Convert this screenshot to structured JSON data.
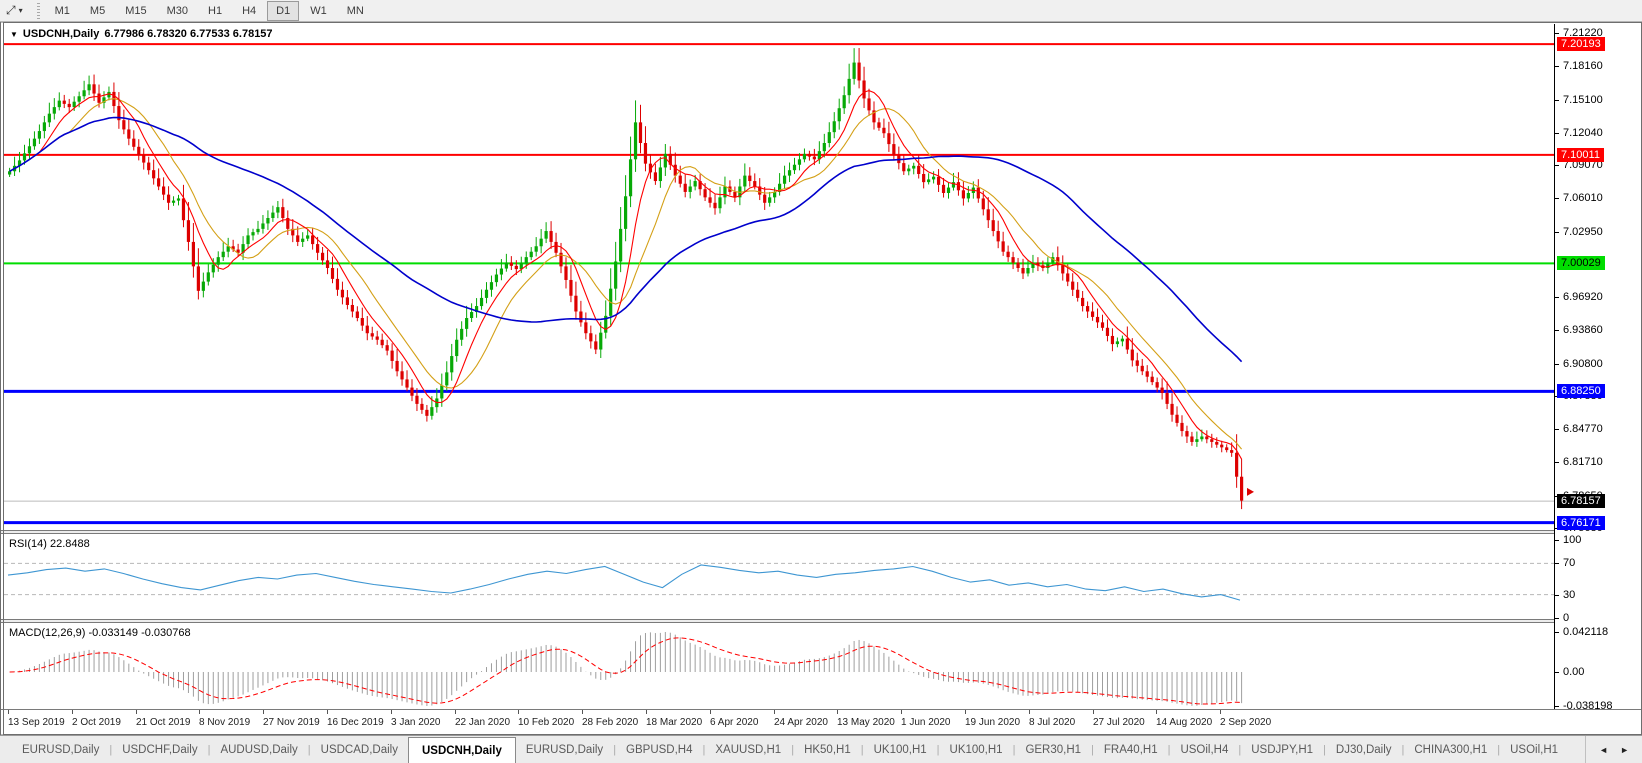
{
  "toolbar": {
    "timeframes": [
      "M1",
      "M5",
      "M15",
      "M30",
      "H1",
      "H4",
      "D1",
      "W1",
      "MN"
    ],
    "active_timeframe": "D1",
    "cursor_tool_glyph": "⤢",
    "caret_glyph": "▾"
  },
  "chart": {
    "collapse_icon": "▼",
    "title_symbol": "USDCNH,Daily",
    "ohlc": "6.77986 6.78320 6.77533 6.78157",
    "open": "6.77986",
    "high": "6.78320",
    "low": "6.77533",
    "close": "6.78157"
  },
  "price_axis": {
    "ticks": [
      {
        "label": "7.21220",
        "value": 7.2122
      },
      {
        "label": "7.18160",
        "value": 7.1816
      },
      {
        "label": "7.15100",
        "value": 7.151
      },
      {
        "label": "7.12040",
        "value": 7.1204
      },
      {
        "label": "7.09070",
        "value": 7.0907
      },
      {
        "label": "7.06010",
        "value": 7.0601
      },
      {
        "label": "7.02950",
        "value": 7.0295
      },
      {
        "label": "6.96920",
        "value": 6.9692
      },
      {
        "label": "6.93860",
        "value": 6.9386
      },
      {
        "label": "6.90800",
        "value": 6.908
      },
      {
        "label": "6.87830",
        "value": 6.8783
      },
      {
        "label": "6.84770",
        "value": 6.8477
      },
      {
        "label": "6.81710",
        "value": 6.8171
      },
      {
        "label": "6.78650",
        "value": 6.7865
      },
      {
        "label": "6.75680",
        "value": 6.7568
      }
    ],
    "badges": [
      {
        "label": "7.20193",
        "value": 7.20193,
        "bg": "#FF0000",
        "fg": "#FFFFFF",
        "name": "resistance-badge-1"
      },
      {
        "label": "7.10011",
        "value": 7.10011,
        "bg": "#FF0000",
        "fg": "#FFFFFF",
        "name": "resistance-badge-2"
      },
      {
        "label": "7.00029",
        "value": 7.00029,
        "bg": "#00DD00",
        "fg": "#000000",
        "name": "pivot-badge"
      },
      {
        "label": "6.88250",
        "value": 6.8825,
        "bg": "#0000FF",
        "fg": "#FFFFFF",
        "name": "support-badge-1"
      },
      {
        "label": "6.78157",
        "value": 6.78157,
        "bg": "#000000",
        "fg": "#FFFFFF",
        "name": "current-price-badge"
      },
      {
        "label": "6.76171",
        "value": 6.76171,
        "bg": "#0000FF",
        "fg": "#FFFFFF",
        "name": "support-badge-2"
      }
    ]
  },
  "chart_data": {
    "type": "candlestick",
    "symbol": "USDCNH",
    "timeframe": "Daily",
    "price_range": [
      6.7568,
      7.2122
    ],
    "up_color": "#07A907",
    "down_color": "#DD0000",
    "close_path": [
      7.085,
      7.095,
      7.108,
      7.122,
      7.138,
      7.15,
      7.144,
      7.154,
      7.165,
      7.148,
      7.158,
      7.132,
      7.115,
      7.1,
      7.086,
      7.071,
      7.056,
      7.06,
      7.02,
      6.975,
      6.992,
      7.006,
      7.016,
      7.01,
      7.026,
      7.032,
      7.042,
      7.052,
      7.032,
      7.02,
      7.026,
      7.01,
      6.996,
      6.976,
      6.962,
      6.95,
      6.936,
      6.93,
      6.92,
      6.901,
      6.886,
      6.871,
      6.86,
      6.876,
      6.9,
      6.93,
      6.95,
      6.961,
      6.976,
      6.99,
      7.001,
      6.995,
      7.006,
      7.016,
      7.03,
      7.01,
      6.985,
      6.956,
      6.936,
      6.921,
      6.952,
      7.002,
      7.062,
      7.13,
      7.092,
      7.076,
      7.101,
      7.081,
      7.066,
      7.076,
      7.061,
      7.051,
      7.071,
      7.061,
      7.081,
      7.071,
      7.056,
      7.066,
      7.081,
      7.091,
      7.101,
      7.096,
      7.111,
      7.131,
      7.155,
      7.185,
      7.152,
      7.13,
      7.12,
      7.1,
      7.085,
      7.09,
      7.075,
      7.08,
      7.065,
      7.075,
      7.06,
      7.07,
      7.05,
      7.03,
      7.011,
      7.001,
      6.991,
      7.001,
      6.996,
      7.006,
      6.991,
      6.976,
      6.961,
      6.951,
      6.941,
      6.926,
      6.931,
      6.911,
      6.901,
      6.891,
      6.881,
      6.861,
      6.846,
      6.836,
      6.841,
      6.836,
      6.831,
      6.826,
      6.782
    ],
    "levels": [
      {
        "price": 7.20193,
        "color": "#FF0000",
        "width": 2
      },
      {
        "price": 7.10011,
        "color": "#FF0000",
        "width": 2
      },
      {
        "price": 7.00029,
        "color": "#00DD00",
        "width": 2
      },
      {
        "price": 6.8825,
        "color": "#0000FF",
        "width": 3
      },
      {
        "price": 6.76171,
        "color": "#0000FF",
        "width": 3
      }
    ],
    "current_price": {
      "price": 6.78157,
      "line_color": "#BBBBBB"
    },
    "moving_averages": [
      {
        "name": "ma-mid",
        "color": "#D4A017",
        "window": 13
      },
      {
        "name": "ma-fast",
        "color": "#FF0000",
        "window": 7
      },
      {
        "name": "ma-slow",
        "color": "#0000CC",
        "window": 45
      }
    ],
    "x_labels": [
      "13 Sep 2019",
      "2 Oct 2019",
      "21 Oct 2019",
      "8 Nov 2019",
      "27 Nov 2019",
      "16 Dec 2019",
      "3 Jan 2020",
      "22 Jan 2020",
      "10 Feb 2020",
      "28 Feb 2020",
      "18 Mar 2020",
      "6 Apr 2020",
      "24 Apr 2020",
      "13 May 2020",
      "1 Jun 2020",
      "19 Jun 2020",
      "8 Jul 2020",
      "27 Jul 2020",
      "14 Aug 2020",
      "2 Sep 2020"
    ],
    "rsi": {
      "period_label": "RSI(14)",
      "value": "22.8488",
      "line_color": "#3E96D2",
      "overbought": 70,
      "oversold": 30,
      "range": [
        0,
        100
      ],
      "values": [
        55,
        58,
        62,
        64,
        60,
        63,
        57,
        50,
        44,
        39,
        36,
        42,
        48,
        52,
        50,
        55,
        57,
        52,
        47,
        43,
        40,
        37,
        34,
        32,
        37,
        43,
        50,
        56,
        60,
        57,
        62,
        66,
        56,
        46,
        39,
        56,
        68,
        65,
        61,
        58,
        60,
        55,
        52,
        56,
        58,
        61,
        63,
        66,
        60,
        52,
        46,
        49,
        42,
        45,
        40,
        43,
        37,
        35,
        40,
        34,
        37,
        31,
        27,
        30,
        23
      ]
    },
    "macd": {
      "label": "MACD(12,26,9)",
      "main_value": "-0.033149",
      "signal_value": "-0.030768",
      "axis_max": "0.042118",
      "axis_zero": "0.00",
      "axis_min": "-0.038198",
      "fast_period": 12,
      "slow_period": 26,
      "signal_period": 9,
      "histogram_color": "#9E9E9E",
      "signal_color": "#FF0000"
    }
  },
  "rsi_panel": {
    "label": "RSI(14) 22.8488",
    "axis_labels": [
      {
        "label": "100",
        "value": 100
      },
      {
        "label": "70",
        "value": 70
      },
      {
        "label": "30",
        "value": 30
      },
      {
        "label": "0",
        "value": 0
      }
    ]
  },
  "macd_panel": {
    "label": "MACD(12,26,9) -0.033149 -0.030768",
    "axis_labels": [
      {
        "label": "0.042118",
        "value": 0.042118
      },
      {
        "label": "0.00",
        "value": 0
      },
      {
        "label": "-0.038198",
        "value": -0.038198
      }
    ]
  },
  "tabs": {
    "items": [
      {
        "label": "EURUSD,Daily",
        "active": false
      },
      {
        "label": "USDCHF,Daily",
        "active": false
      },
      {
        "label": "AUDUSD,Daily",
        "active": false
      },
      {
        "label": "USDCAD,Daily",
        "active": false
      },
      {
        "label": "USDCNH,Daily",
        "active": true
      },
      {
        "label": "EURUSD,Daily",
        "active": false
      },
      {
        "label": "GBPUSD,H4",
        "active": false
      },
      {
        "label": "XAUUSD,H1",
        "active": false
      },
      {
        "label": "HK50,H1",
        "active": false
      },
      {
        "label": "UK100,H1",
        "active": false
      },
      {
        "label": "UK100,H1",
        "active": false
      },
      {
        "label": "GER30,H1",
        "active": false
      },
      {
        "label": "FRA40,H1",
        "active": false
      },
      {
        "label": "USOil,H4",
        "active": false
      },
      {
        "label": "USDJPY,H1",
        "active": false
      },
      {
        "label": "DJ30,Daily",
        "active": false
      },
      {
        "label": "CHINA300,H1",
        "active": false
      },
      {
        "label": "USOil,H1",
        "active": false
      }
    ],
    "scroll_left": "◄",
    "scroll_right": "►"
  }
}
